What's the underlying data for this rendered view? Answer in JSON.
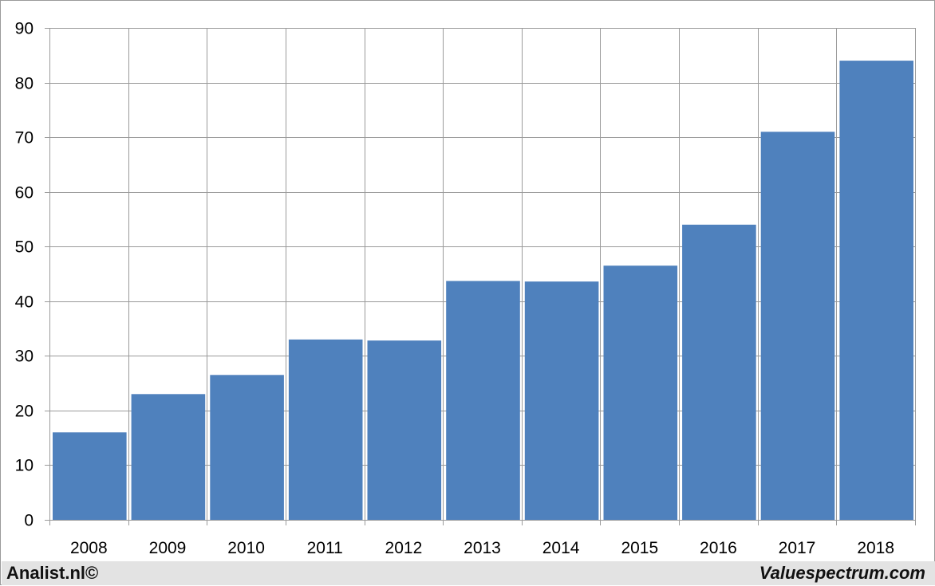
{
  "chart_data": {
    "type": "bar",
    "title": "",
    "xlabel": "",
    "ylabel": "",
    "categories": [
      "2008",
      "2009",
      "2010",
      "2011",
      "2012",
      "2013",
      "2014",
      "2015",
      "2016",
      "2017",
      "2018"
    ],
    "values": [
      16.0,
      23.0,
      26.5,
      33.0,
      32.8,
      43.7,
      43.6,
      46.5,
      54.0,
      71.0,
      84.0
    ],
    "ylim": [
      0,
      90
    ],
    "yticks": [
      0,
      10,
      20,
      30,
      40,
      50,
      60,
      70,
      80,
      90
    ],
    "grid": true,
    "legend": "none",
    "bar_color": "#4F81BD",
    "grid_color": "#9a9a9a"
  },
  "footer": {
    "left": "Analist.nl©",
    "right": "Valuespectrum.com"
  }
}
